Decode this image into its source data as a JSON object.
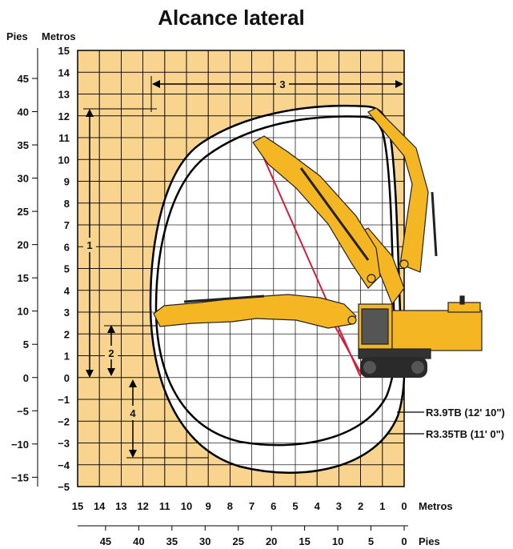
{
  "title": "Alcance lateral",
  "axes": {
    "feet_label_top": "Pies",
    "meters_label_top": "Metros",
    "meters_label_bottom": "Metros",
    "feet_label_bottom": "Pies",
    "left_meters_ticks": [
      "15",
      "14",
      "13",
      "12",
      "11",
      "10",
      "9",
      "8",
      "7",
      "6",
      "5",
      "4",
      "3",
      "2",
      "1",
      "0",
      "−1",
      "−2",
      "−3",
      "−4",
      "−5"
    ],
    "left_feet_ticks": [
      "45",
      "40",
      "35",
      "30",
      "25",
      "20",
      "15",
      "10",
      "5",
      "0",
      "−5",
      "−10",
      "−15"
    ],
    "bottom_meters_ticks": [
      "15",
      "14",
      "13",
      "12",
      "11",
      "10",
      "9",
      "8",
      "7",
      "6",
      "5",
      "4",
      "3",
      "2",
      "1",
      "0"
    ],
    "bottom_feet_ticks": [
      "45",
      "40",
      "35",
      "30",
      "25",
      "20",
      "15",
      "10",
      "5",
      "0"
    ]
  },
  "dimensions": [
    "1",
    "2",
    "3",
    "4"
  ],
  "curves": {
    "outer_label": "R3.9TB (12' 10\")",
    "inner_label": "R3.35TB (11' 0\")"
  },
  "colors": {
    "grid_background": "#f9d48f",
    "grid_lines": "#000000",
    "reach_curve": "#000000",
    "hose_line": "#d11f3a",
    "machine_yellow": "#f4b623",
    "machine_dark": "#222222"
  }
}
